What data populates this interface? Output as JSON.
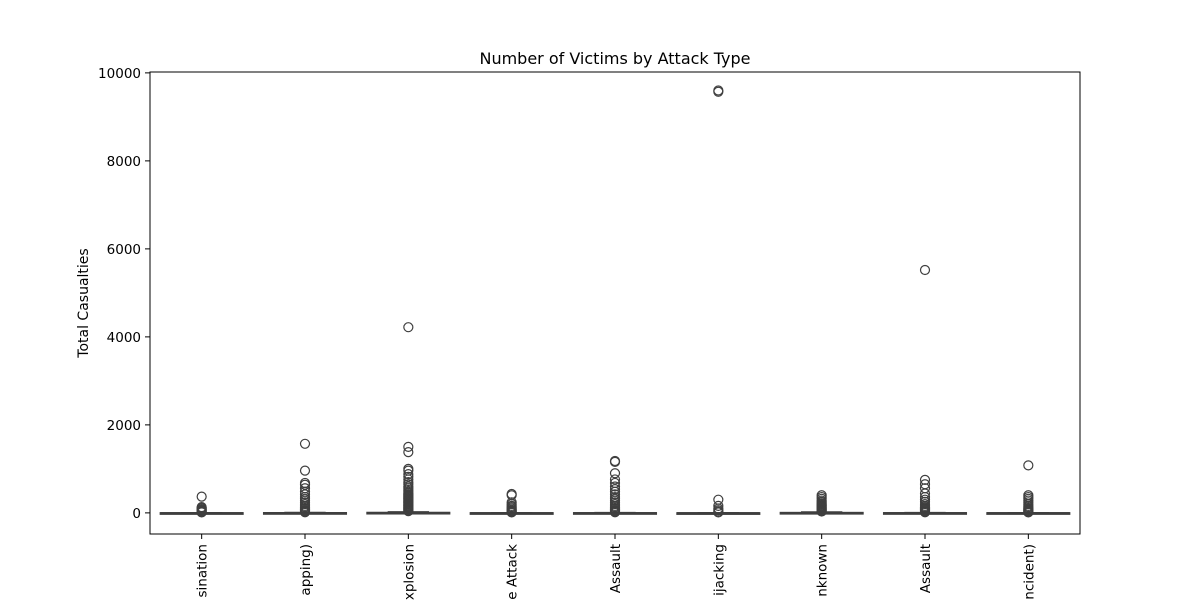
{
  "chart_data": {
    "type": "box",
    "title": "Number of Victims by Attack Type",
    "xlabel": "",
    "ylabel": "Total Casualties",
    "ylim": [
      -480,
      10020
    ],
    "yticks": [
      0,
      2000,
      4000,
      6000,
      8000,
      10000
    ],
    "grid": false,
    "legend": "none",
    "colors": {
      "box_fill": "#ffffff",
      "box_edge": "#3f3f3f",
      "outlier_edge": "#3f3f3f"
    },
    "categories": [
      "sination",
      "apping)",
      "xplosion",
      "e Attack",
      "Assault",
      "ijacking",
      "nknown",
      "Assault",
      "ncident)"
    ],
    "boxes": [
      {
        "q1": 0,
        "median": 0,
        "q3": 2,
        "whisker_low": 0,
        "whisker_high": 5,
        "outliers": [
          10,
          20,
          35,
          50,
          65,
          85,
          110,
          130,
          370
        ]
      },
      {
        "q1": 0,
        "median": 1,
        "q3": 4,
        "whisker_low": 0,
        "whisker_high": 10,
        "outliers": [
          15,
          30,
          50,
          70,
          100,
          130,
          160,
          200,
          240,
          280,
          320,
          360,
          420,
          480,
          560,
          640,
          680,
          960,
          1570
        ]
      },
      {
        "q1": 0,
        "median": 2,
        "q3": 10,
        "whisker_low": 0,
        "whisker_high": 25,
        "outliers": [
          40,
          60,
          80,
          100,
          120,
          140,
          160,
          180,
          200,
          220,
          240,
          260,
          280,
          300,
          320,
          340,
          360,
          380,
          400,
          420,
          450,
          480,
          520,
          560,
          600,
          650,
          700,
          760,
          820,
          880,
          960,
          1000,
          1380,
          1500,
          4220
        ]
      },
      {
        "q1": 0,
        "median": 0,
        "q3": 2,
        "whisker_low": 0,
        "whisker_high": 5,
        "outliers": [
          10,
          20,
          35,
          50,
          70,
          100,
          130,
          160,
          200,
          240,
          400,
          430
        ]
      },
      {
        "q1": 0,
        "median": 1,
        "q3": 3,
        "whisker_low": 0,
        "whisker_high": 8,
        "outliers": [
          15,
          30,
          50,
          70,
          100,
          130,
          160,
          200,
          240,
          280,
          320,
          360,
          420,
          480,
          540,
          600,
          680,
          760,
          900,
          1160,
          1180
        ]
      },
      {
        "q1": 0,
        "median": 0,
        "q3": 1,
        "whisker_low": 0,
        "whisker_high": 3,
        "outliers": [
          10,
          30,
          60,
          100,
          160,
          300,
          9570,
          9600
        ]
      },
      {
        "q1": 0,
        "median": 1,
        "q3": 8,
        "whisker_low": 0,
        "whisker_high": 20,
        "outliers": [
          30,
          45,
          60,
          80,
          100,
          120,
          140,
          160,
          180,
          200,
          220,
          250,
          280,
          320,
          360,
          400
        ]
      },
      {
        "q1": 0,
        "median": 1,
        "q3": 3,
        "whisker_low": 0,
        "whisker_high": 8,
        "outliers": [
          15,
          30,
          50,
          70,
          90,
          110,
          130,
          160,
          200,
          250,
          300,
          360,
          440,
          560,
          650,
          750,
          5520
        ]
      },
      {
        "q1": 0,
        "median": 0,
        "q3": 2,
        "whisker_low": 0,
        "whisker_high": 5,
        "outliers": [
          10,
          25,
          40,
          60,
          80,
          100,
          130,
          160,
          200,
          240,
          280,
          320,
          360,
          400,
          1080
        ]
      }
    ]
  }
}
